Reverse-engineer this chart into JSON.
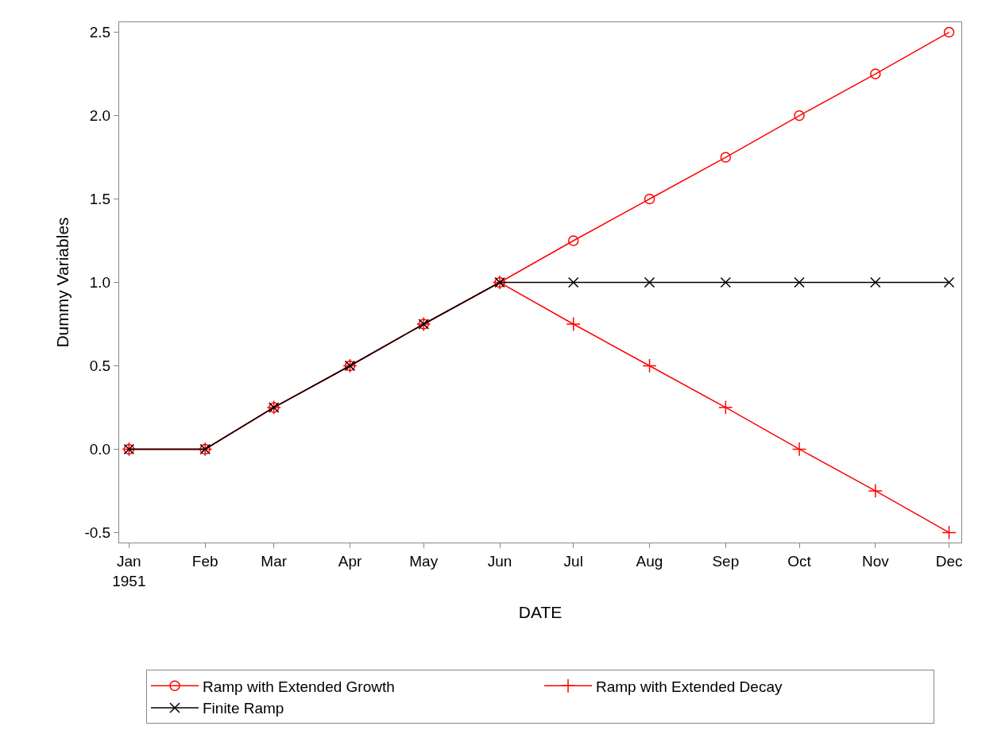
{
  "chart_data": {
    "type": "line",
    "xlabel": "DATE",
    "ylabel": "Dummy Variables",
    "x": [
      "1951-01",
      "1951-02",
      "1951-03",
      "1951-04",
      "1951-05",
      "1951-06",
      "1951-07",
      "1951-08",
      "1951-09",
      "1951-10",
      "1951-11",
      "1951-12"
    ],
    "series": [
      {
        "name": "Ramp with Extended Growth",
        "color": "#ff0000",
        "marker": "circle",
        "values": [
          0,
          0,
          0.25,
          0.5,
          0.75,
          1,
          1.25,
          1.5,
          1.75,
          2,
          2.25,
          2.5
        ]
      },
      {
        "name": "Ramp with Extended Decay",
        "color": "#ff0000",
        "marker": "cross",
        "values": [
          0,
          0,
          0.25,
          0.5,
          0.75,
          1,
          0.75,
          0.5,
          0.25,
          0,
          -0.25,
          -0.5
        ]
      },
      {
        "name": "Finite Ramp",
        "color": "#000000",
        "marker": "x",
        "values": [
          0,
          0,
          0.25,
          0.5,
          0.75,
          1,
          1,
          1,
          1,
          1,
          1,
          1
        ]
      }
    ],
    "xlim": [
      "1950-12-28",
      "1951-12-06"
    ],
    "xticks": [
      {
        "value": "1951-01",
        "label": "Jan\n1951"
      },
      {
        "value": "1951-02",
        "label": "Feb"
      },
      {
        "value": "1951-03",
        "label": "Mar"
      },
      {
        "value": "1951-04",
        "label": "Apr"
      },
      {
        "value": "1951-05",
        "label": "May"
      },
      {
        "value": "1951-06",
        "label": "Jun"
      },
      {
        "value": "1951-07",
        "label": "Jul"
      },
      {
        "value": "1951-08",
        "label": "Aug"
      },
      {
        "value": "1951-09",
        "label": "Sep"
      },
      {
        "value": "1951-10",
        "label": "Oct"
      },
      {
        "value": "1951-11",
        "label": "Nov"
      },
      {
        "value": "1951-12",
        "label": "Dec"
      }
    ],
    "ylim": [
      -0.56,
      2.56
    ],
    "yticks": [
      {
        "value": -0.5,
        "label": "-0.5"
      },
      {
        "value": 0,
        "label": "0.0"
      },
      {
        "value": 0.5,
        "label": "0.5"
      },
      {
        "value": 1,
        "label": "1.0"
      },
      {
        "value": 1.5,
        "label": "1.5"
      },
      {
        "value": 2,
        "label": "2.0"
      },
      {
        "value": 2.5,
        "label": "2.5"
      }
    ],
    "legend": "bottom",
    "line_style": "solid"
  }
}
